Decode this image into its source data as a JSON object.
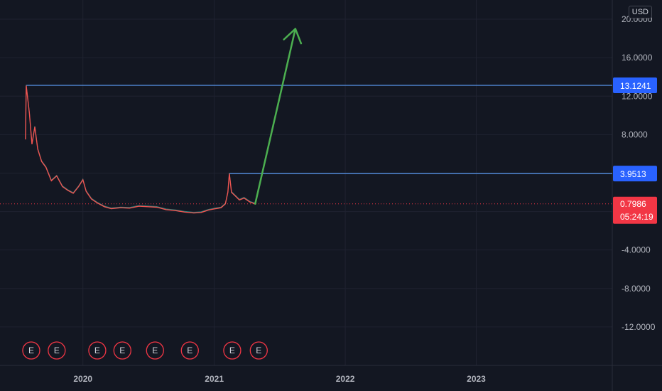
{
  "currency": "USD",
  "chart_data": {
    "type": "line",
    "title": "",
    "xlabel": "",
    "ylabel": "",
    "x_ticks": [
      "2020",
      "2021",
      "2022",
      "2023"
    ],
    "y_ticks": [
      20,
      16,
      12,
      8,
      4,
      0,
      -4,
      -8,
      -12
    ],
    "y_tick_labels": [
      "20.0000",
      "16.0000",
      "12.0000",
      "8.0000",
      "",
      "",
      "-4.0000",
      "-8.0000",
      "-12.0000"
    ],
    "ylim": [
      -16,
      22
    ],
    "xlim": [
      "2019-05-15",
      "2024-01-15"
    ],
    "grid": true,
    "legend": "none",
    "series": [
      {
        "points": [
          [
            "2019-07-25",
            7.5
          ],
          [
            "2019-07-27",
            13.1
          ],
          [
            "2019-08-01",
            11.5
          ],
          [
            "2019-08-05",
            10.2
          ],
          [
            "2019-08-12",
            7.0
          ],
          [
            "2019-08-20",
            8.8
          ],
          [
            "2019-08-28",
            6.5
          ],
          [
            "2019-09-08",
            5.2
          ],
          [
            "2019-09-20",
            4.6
          ],
          [
            "2019-10-05",
            3.2
          ],
          [
            "2019-10-20",
            3.7
          ],
          [
            "2019-11-05",
            2.6
          ],
          [
            "2019-11-20",
            2.2
          ],
          [
            "2019-12-05",
            1.9
          ],
          [
            "2019-12-20",
            2.6
          ],
          [
            "2020-01-01",
            3.3
          ],
          [
            "2020-01-10",
            2.1
          ],
          [
            "2020-01-25",
            1.3
          ],
          [
            "2020-02-10",
            0.9
          ],
          [
            "2020-03-01",
            0.5
          ],
          [
            "2020-03-20",
            0.3
          ],
          [
            "2020-04-15",
            0.4
          ],
          [
            "2020-05-10",
            0.35
          ],
          [
            "2020-06-05",
            0.55
          ],
          [
            "2020-07-01",
            0.5
          ],
          [
            "2020-07-25",
            0.45
          ],
          [
            "2020-08-20",
            0.2
          ],
          [
            "2020-09-15",
            0.1
          ],
          [
            "2020-10-10",
            -0.05
          ],
          [
            "2020-11-05",
            -0.15
          ],
          [
            "2020-11-25",
            -0.1
          ],
          [
            "2020-12-15",
            0.15
          ],
          [
            "2021-01-05",
            0.3
          ],
          [
            "2021-01-20",
            0.4
          ],
          [
            "2021-02-01",
            0.8
          ],
          [
            "2021-02-08",
            2.0
          ],
          [
            "2021-02-12",
            3.95
          ],
          [
            "2021-02-18",
            2.0
          ],
          [
            "2021-03-01",
            1.6
          ],
          [
            "2021-03-12",
            1.2
          ],
          [
            "2021-03-25",
            1.4
          ],
          [
            "2021-04-10",
            1.0
          ],
          [
            "2021-04-25",
            0.8
          ]
        ],
        "color": "#ef5350",
        "wick_color": "#26a69a"
      }
    ],
    "horizontal_lines": [
      {
        "label": "13.1241",
        "value": 13.1241,
        "from_x": "2019-07-27",
        "color": "#5b9cf6"
      },
      {
        "label": "3.9513",
        "value": 3.9513,
        "from_x": "2021-02-12",
        "color": "#5b9cf6"
      }
    ],
    "last_price": {
      "label": "0.7986",
      "value": 0.7986,
      "countdown": "05:24:19",
      "color": "#f23645"
    },
    "arrow": {
      "from": [
        "2021-04-25",
        0.8
      ],
      "to": [
        "2021-08-15",
        19.0
      ],
      "color": "#4caf50"
    },
    "event_markers": {
      "label": "E",
      "dates": [
        "2019-08-10",
        "2019-10-20",
        "2020-02-10",
        "2020-04-20",
        "2020-07-20",
        "2020-10-25",
        "2021-02-20",
        "2021-05-05"
      ],
      "color": "#f23645"
    }
  }
}
